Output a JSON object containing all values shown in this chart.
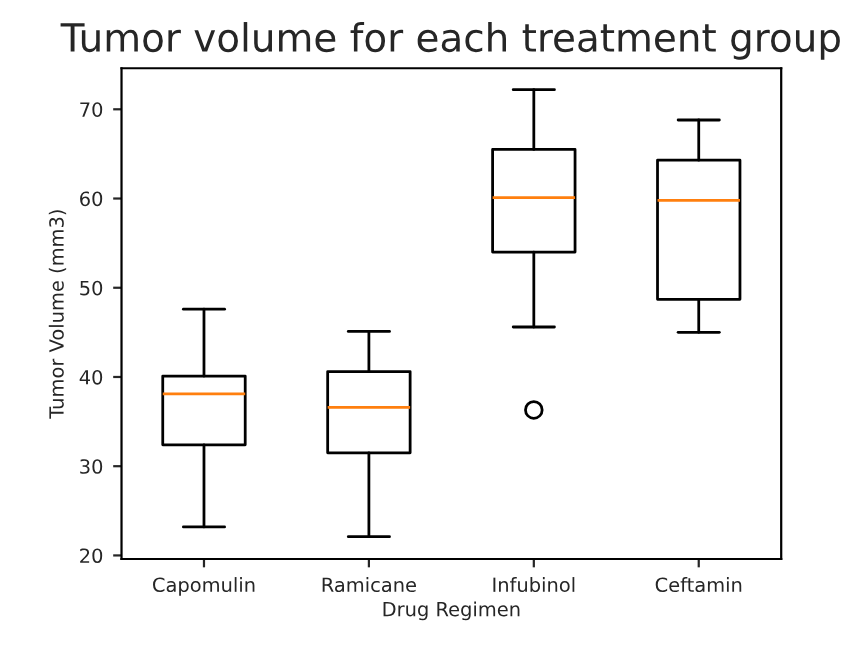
{
  "chart_data": {
    "type": "box",
    "title": "Tumor volume for each treatment group",
    "xlabel": "Drug Regimen",
    "ylabel": "Tumor Volume (mm3)",
    "categories": [
      "Capomulin",
      "Ramicane",
      "Infubinol",
      "Ceftamin"
    ],
    "boxes": [
      {
        "low": 23.2,
        "q1": 32.4,
        "median": 38.1,
        "q3": 40.1,
        "high": 47.6
      },
      {
        "low": 22.1,
        "q1": 31.5,
        "median": 36.6,
        "q3": 40.6,
        "high": 45.1
      },
      {
        "low": 45.6,
        "q1": 54.0,
        "median": 60.1,
        "q3": 65.5,
        "high": 72.2,
        "outliers": [
          36.3
        ]
      },
      {
        "low": 45.0,
        "q1": 48.7,
        "median": 59.8,
        "q3": 64.3,
        "high": 68.8
      }
    ],
    "ylim": [
      19.6,
      74.6
    ],
    "yticks": [
      20,
      30,
      40,
      50,
      60,
      70
    ],
    "grid": false
  }
}
